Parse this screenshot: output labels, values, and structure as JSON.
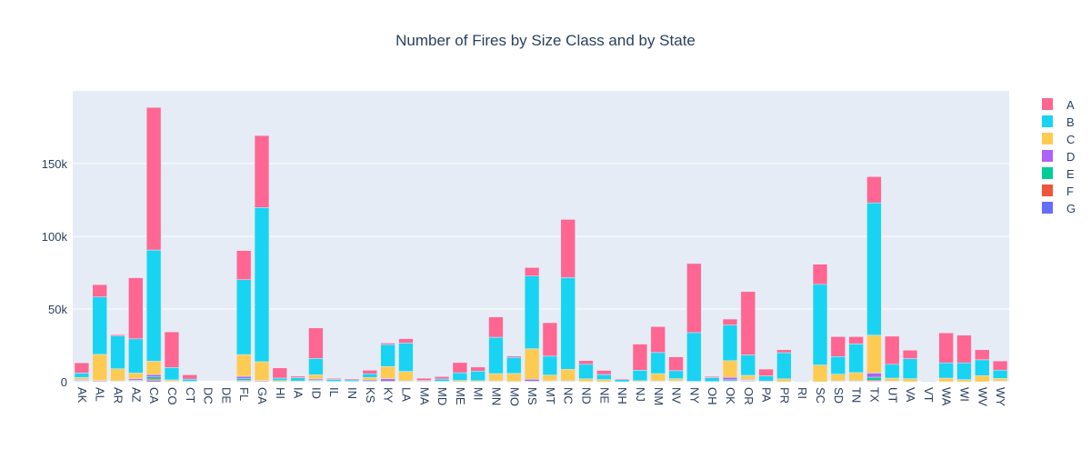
{
  "chart_data": {
    "type": "bar",
    "barmode": "stack",
    "title": "Number of Fires by Size Class and by State",
    "xlabel": "",
    "ylabel": "",
    "ylim": [
      0,
      200000
    ],
    "yticks": [
      0,
      50000,
      100000,
      150000
    ],
    "ytick_labels": [
      "0",
      "50k",
      "100k",
      "150k"
    ],
    "legend_position": "right",
    "categories": [
      "AK",
      "AL",
      "AR",
      "AZ",
      "CA",
      "CO",
      "CT",
      "DC",
      "DE",
      "FL",
      "GA",
      "HI",
      "IA",
      "ID",
      "IL",
      "IN",
      "KS",
      "KY",
      "LA",
      "MA",
      "MD",
      "ME",
      "MI",
      "MN",
      "MO",
      "MS",
      "MT",
      "NC",
      "ND",
      "NE",
      "NH",
      "NJ",
      "NM",
      "NV",
      "NY",
      "OH",
      "OK",
      "OR",
      "PA",
      "PR",
      "RI",
      "SC",
      "SD",
      "TN",
      "TX",
      "UT",
      "VA",
      "VT",
      "WA",
      "WI",
      "WV",
      "WY"
    ],
    "series": [
      {
        "name": "G",
        "color": "#636efa",
        "values": [
          300,
          0,
          0,
          300,
          800,
          0,
          0,
          0,
          0,
          400,
          0,
          0,
          0,
          300,
          0,
          0,
          0,
          0,
          0,
          0,
          0,
          0,
          0,
          0,
          0,
          0,
          0,
          0,
          0,
          0,
          0,
          0,
          0,
          0,
          0,
          0,
          200,
          300,
          0,
          0,
          0,
          0,
          0,
          0,
          400,
          0,
          0,
          0,
          0,
          0,
          0,
          0
        ]
      },
      {
        "name": "F",
        "color": "#ef553b",
        "values": [
          300,
          0,
          0,
          300,
          1000,
          0,
          0,
          0,
          0,
          500,
          0,
          0,
          0,
          300,
          0,
          0,
          0,
          0,
          0,
          0,
          0,
          0,
          0,
          0,
          0,
          0,
          0,
          0,
          0,
          0,
          0,
          0,
          0,
          0,
          0,
          0,
          300,
          400,
          0,
          0,
          0,
          0,
          0,
          0,
          700,
          0,
          0,
          0,
          0,
          0,
          0,
          0
        ]
      },
      {
        "name": "E",
        "color": "#00cc96",
        "values": [
          400,
          300,
          300,
          400,
          1500,
          0,
          0,
          0,
          0,
          1200,
          300,
          0,
          0,
          500,
          0,
          0,
          400,
          300,
          300,
          0,
          0,
          0,
          0,
          300,
          0,
          400,
          300,
          300,
          0,
          0,
          0,
          0,
          300,
          300,
          0,
          0,
          800,
          300,
          0,
          0,
          0,
          0,
          300,
          300,
          2000,
          200,
          0,
          0,
          0,
          0,
          0,
          200
        ]
      },
      {
        "name": "D",
        "color": "#ab63fa",
        "values": [
          600,
          500,
          300,
          1000,
          1600,
          300,
          0,
          0,
          0,
          1600,
          500,
          0,
          0,
          800,
          0,
          0,
          800,
          1700,
          300,
          0,
          0,
          0,
          0,
          300,
          200,
          1300,
          300,
          300,
          200,
          0,
          0,
          0,
          300,
          300,
          0,
          0,
          1700,
          600,
          0,
          0,
          0,
          0,
          300,
          300,
          2900,
          300,
          0,
          0,
          0,
          0,
          0,
          300
        ]
      },
      {
        "name": "C",
        "color": "#fecb52",
        "values": [
          1400,
          18000,
          8300,
          4000,
          9200,
          1000,
          300,
          0,
          0,
          15000,
          13000,
          800,
          500,
          2900,
          300,
          300,
          1800,
          8500,
          6500,
          400,
          300,
          900,
          700,
          5000,
          5500,
          21000,
          4000,
          8000,
          1800,
          1500,
          0,
          700,
          5000,
          1500,
          300,
          200,
          11500,
          2800,
          500,
          2000,
          0,
          11500,
          4600,
          5700,
          26000,
          2000,
          2100,
          0,
          2500,
          1500,
          4200,
          1800
        ]
      },
      {
        "name": "B",
        "color": "#19d3f3",
        "values": [
          3000,
          39500,
          22500,
          23500,
          76500,
          8500,
          1500,
          0,
          0,
          51500,
          106000,
          1700,
          2300,
          11200,
          1300,
          1000,
          2500,
          15100,
          19500,
          400,
          1600,
          5300,
          6600,
          25000,
          11000,
          50000,
          13000,
          63000,
          10000,
          3500,
          1400,
          7200,
          14500,
          5500,
          33500,
          2600,
          24500,
          14000,
          3500,
          18000,
          300,
          55500,
          12100,
          19700,
          91000,
          9500,
          13800,
          200,
          10500,
          11500,
          10900,
          5700
        ]
      },
      {
        "name": "A",
        "color": "#ff6692",
        "values": [
          7000,
          8500,
          900,
          42000,
          98000,
          24500,
          3000,
          0,
          0,
          20000,
          49500,
          7000,
          1000,
          21000,
          700,
          700,
          2400,
          1000,
          3000,
          1600,
          1600,
          7000,
          2800,
          14000,
          900,
          5800,
          23000,
          40000,
          2500,
          2800,
          600,
          18000,
          17800,
          9500,
          47500,
          800,
          4100,
          43600,
          4700,
          2000,
          300,
          13800,
          13700,
          5000,
          18000,
          19300,
          5800,
          200,
          20600,
          19000,
          6900,
          6300
        ]
      }
    ],
    "legend_order": [
      "A",
      "B",
      "C",
      "D",
      "E",
      "F",
      "G"
    ]
  }
}
